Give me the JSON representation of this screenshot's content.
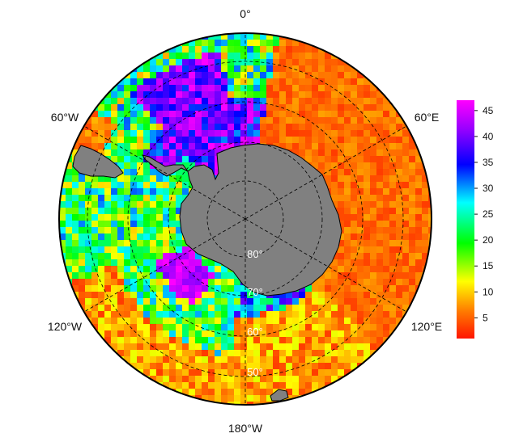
{
  "map": {
    "projection": "south-polar-stereographic",
    "longitude_labels": {
      "top": "0°",
      "upper_left": "60°W",
      "upper_right": "60°E",
      "lower_left": "120°W",
      "lower_right": "120°E",
      "bottom": "180°W"
    },
    "latitude_labels": [
      "80°",
      "70°",
      "60°",
      "50°"
    ],
    "land_color": "#808080",
    "coastline_color": "#000000",
    "graticule_style": "dashed-black",
    "field_regions": [
      {
        "sector": "0°E to 120°E, open ocean",
        "value_range": [
          1,
          8
        ]
      },
      {
        "sector": "Weddell Sea / 0°–60°W high latitudes",
        "value_range": [
          35,
          47
        ]
      },
      {
        "sector": "Ross/Amundsen sea coastal",
        "value_range": [
          38,
          47
        ]
      },
      {
        "sector": "Pacific 120°W–180°",
        "value_range": [
          5,
          30
        ]
      },
      {
        "sector": "Drake Passage / south Atlantic",
        "value_range": [
          10,
          30
        ]
      }
    ]
  },
  "colorbar": {
    "min": 1,
    "max": 47,
    "tick_labels": [
      "45",
      "40",
      "35",
      "30",
      "25",
      "20",
      "15",
      "10",
      "5"
    ],
    "tick_values": [
      45,
      40,
      35,
      30,
      25,
      20,
      15,
      10,
      5
    ],
    "colors": [
      "#ff1400",
      "#ff8000",
      "#ffff00",
      "#00ff00",
      "#00ffff",
      "#0000ff",
      "#9900ff",
      "#ff00ff"
    ]
  }
}
